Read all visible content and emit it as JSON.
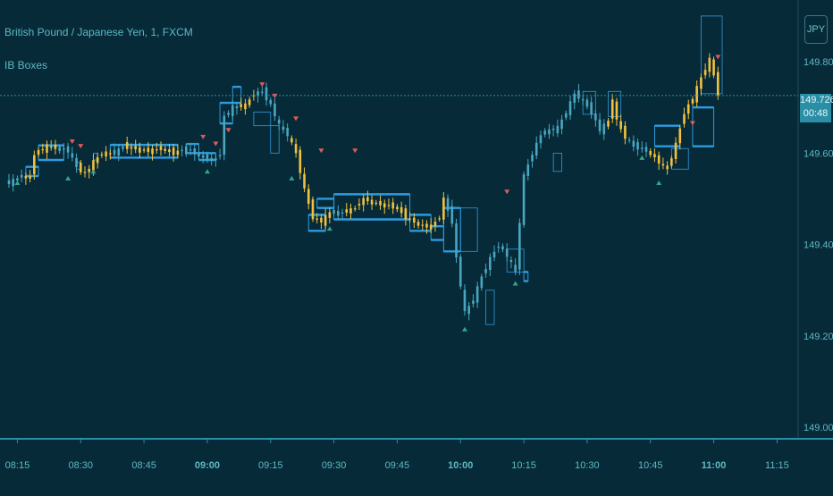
{
  "legend": {
    "symbol": "British Pound / Japanese Yen, 1, FXCM",
    "indicator": "IB Boxes"
  },
  "currency": "JPY",
  "last_price": {
    "value": "149.726",
    "countdown": "00:48",
    "level": 149.726
  },
  "colors": {
    "background": "#062a38",
    "axis_text": "#5fb8c4",
    "box": "#2e9be0",
    "candle_inside": "#f2c13f",
    "candle_normal": "#4aa6c0",
    "price_line": "#2a8fa5",
    "marker_up": "#35a38c",
    "marker_down": "#e05a5a"
  },
  "chart_data": {
    "type": "candlestick",
    "y_ticks": [
      "149.800",
      "149.600",
      "149.400",
      "149.200",
      "149.000"
    ],
    "y_tick_values": [
      149.8,
      149.6,
      149.4,
      149.2,
      149.0
    ],
    "ylim": [
      148.975,
      149.935
    ],
    "x_ticks": [
      {
        "label": "08:15",
        "t": 15,
        "bold": false
      },
      {
        "label": "08:30",
        "t": 30,
        "bold": false
      },
      {
        "label": "08:45",
        "t": 45,
        "bold": false
      },
      {
        "label": "09:00",
        "t": 60,
        "bold": true
      },
      {
        "label": "09:15",
        "t": 75,
        "bold": false
      },
      {
        "label": "09:30",
        "t": 90,
        "bold": false
      },
      {
        "label": "09:45",
        "t": 105,
        "bold": false
      },
      {
        "label": "10:00",
        "t": 120,
        "bold": true
      },
      {
        "label": "10:15",
        "t": 135,
        "bold": false
      },
      {
        "label": "10:30",
        "t": 150,
        "bold": false
      },
      {
        "label": "10:45",
        "t": 165,
        "bold": false
      },
      {
        "label": "11:00",
        "t": 180,
        "bold": true
      },
      {
        "label": "11:15",
        "t": 195,
        "bold": false
      }
    ],
    "xlim": [
      13,
      200
    ],
    "path": [
      [
        13,
        149.535
      ],
      [
        16,
        149.55
      ],
      [
        18,
        149.545
      ],
      [
        19,
        149.6
      ],
      [
        22,
        149.615
      ],
      [
        25,
        149.61
      ],
      [
        27,
        149.605
      ],
      [
        29,
        149.57
      ],
      [
        31,
        149.555
      ],
      [
        33,
        149.58
      ],
      [
        35,
        149.6
      ],
      [
        38,
        149.6
      ],
      [
        40,
        149.615
      ],
      [
        43,
        149.61
      ],
      [
        46,
        149.605
      ],
      [
        49,
        149.61
      ],
      [
        52,
        149.6
      ],
      [
        55,
        149.61
      ],
      [
        57,
        149.6
      ],
      [
        59,
        149.59
      ],
      [
        62,
        149.585
      ],
      [
        63,
        149.6
      ],
      [
        64,
        149.68
      ],
      [
        66,
        149.7
      ],
      [
        69,
        149.705
      ],
      [
        71,
        149.73
      ],
      [
        73,
        149.735
      ],
      [
        75,
        149.705
      ],
      [
        77,
        149.66
      ],
      [
        79,
        149.64
      ],
      [
        81,
        149.6
      ],
      [
        83,
        149.52
      ],
      [
        85,
        149.46
      ],
      [
        87,
        149.45
      ],
      [
        89,
        149.47
      ],
      [
        92,
        149.47
      ],
      [
        95,
        149.48
      ],
      [
        97,
        149.5
      ],
      [
        100,
        149.49
      ],
      [
        103,
        149.485
      ],
      [
        105,
        149.48
      ],
      [
        107,
        149.46
      ],
      [
        109,
        149.45
      ],
      [
        111,
        149.44
      ],
      [
        113,
        149.44
      ],
      [
        115,
        149.46
      ],
      [
        116,
        149.5
      ],
      [
        118,
        149.45
      ],
      [
        119,
        149.37
      ],
      [
        121,
        149.25
      ],
      [
        123,
        149.28
      ],
      [
        125,
        149.33
      ],
      [
        127,
        149.37
      ],
      [
        129,
        149.4
      ],
      [
        131,
        149.375
      ],
      [
        133,
        149.34
      ],
      [
        134,
        149.45
      ],
      [
        135,
        149.55
      ],
      [
        137,
        149.6
      ],
      [
        139,
        149.64
      ],
      [
        141,
        149.65
      ],
      [
        143,
        149.655
      ],
      [
        145,
        149.69
      ],
      [
        147,
        149.73
      ],
      [
        149,
        149.715
      ],
      [
        151,
        149.69
      ],
      [
        153,
        149.65
      ],
      [
        155,
        149.67
      ],
      [
        156,
        149.72
      ],
      [
        157,
        149.67
      ],
      [
        159,
        149.635
      ],
      [
        161,
        149.615
      ],
      [
        163,
        149.61
      ],
      [
        165,
        149.6
      ],
      [
        167,
        149.58
      ],
      [
        169,
        149.565
      ],
      [
        171,
        149.62
      ],
      [
        173,
        149.69
      ],
      [
        175,
        149.72
      ],
      [
        177,
        149.765
      ],
      [
        179,
        149.805
      ],
      [
        180,
        149.77
      ],
      [
        181,
        149.73
      ]
    ],
    "inside_bar_ranges": [
      [
        17,
        24
      ],
      [
        30,
        37
      ],
      [
        41,
        53
      ],
      [
        68,
        71
      ],
      [
        80,
        89
      ],
      [
        93,
        109
      ],
      [
        110,
        116
      ],
      [
        155,
        159
      ],
      [
        165,
        175
      ],
      [
        176,
        181
      ]
    ],
    "ib_boxes": [
      {
        "t0": 20,
        "t1": 26,
        "hi": 149.617,
        "lo": 149.585,
        "style": "bold"
      },
      {
        "t0": 17,
        "t1": 20,
        "hi": 149.57,
        "lo": 149.55,
        "style": "bold"
      },
      {
        "t0": 29,
        "t1": 30,
        "hi": 149.58,
        "lo": 149.565,
        "style": "thin"
      },
      {
        "t0": 33,
        "t1": 34,
        "hi": 149.6,
        "lo": 149.585,
        "style": "thin"
      },
      {
        "t0": 37,
        "t1": 53,
        "hi": 149.618,
        "lo": 149.59,
        "style": "bold"
      },
      {
        "t0": 55,
        "t1": 58,
        "hi": 149.62,
        "lo": 149.6,
        "style": "bold"
      },
      {
        "t0": 58,
        "t1": 62,
        "hi": 149.6,
        "lo": 149.585,
        "style": "bold"
      },
      {
        "t0": 63,
        "t1": 66,
        "hi": 149.71,
        "lo": 149.665,
        "style": "bold"
      },
      {
        "t0": 66,
        "t1": 68,
        "hi": 149.745,
        "lo": 149.71,
        "style": "bold"
      },
      {
        "t0": 71,
        "t1": 75,
        "hi": 149.69,
        "lo": 149.66,
        "style": "thin"
      },
      {
        "t0": 75,
        "t1": 77,
        "hi": 149.66,
        "lo": 149.6,
        "style": "thin"
      },
      {
        "t0": 84,
        "t1": 88,
        "hi": 149.465,
        "lo": 149.43,
        "style": "bold"
      },
      {
        "t0": 86,
        "t1": 90,
        "hi": 149.5,
        "lo": 149.48,
        "style": "bold"
      },
      {
        "t0": 90,
        "t1": 108,
        "hi": 149.51,
        "lo": 149.455,
        "style": "bold"
      },
      {
        "t0": 108,
        "t1": 113,
        "hi": 149.465,
        "lo": 149.43,
        "style": "bold"
      },
      {
        "t0": 113,
        "t1": 116,
        "hi": 149.44,
        "lo": 149.41,
        "style": "bold"
      },
      {
        "t0": 116,
        "t1": 120,
        "hi": 149.48,
        "lo": 149.385,
        "style": "bold"
      },
      {
        "t0": 120,
        "t1": 124,
        "hi": 149.48,
        "lo": 149.385,
        "style": "thin"
      },
      {
        "t0": 126,
        "t1": 128,
        "hi": 149.3,
        "lo": 149.225,
        "style": "thin"
      },
      {
        "t0": 131,
        "t1": 135,
        "hi": 149.39,
        "lo": 149.34,
        "style": "thin"
      },
      {
        "t0": 135,
        "t1": 136,
        "hi": 149.34,
        "lo": 149.32,
        "style": "bold"
      },
      {
        "t0": 142,
        "t1": 144,
        "hi": 149.6,
        "lo": 149.56,
        "style": "thin"
      },
      {
        "t0": 149,
        "t1": 152,
        "hi": 149.735,
        "lo": 149.685,
        "style": "thin"
      },
      {
        "t0": 155,
        "t1": 158,
        "hi": 149.735,
        "lo": 149.68,
        "style": "thin"
      },
      {
        "t0": 166,
        "t1": 172,
        "hi": 149.66,
        "lo": 149.615,
        "style": "bold"
      },
      {
        "t0": 170,
        "t1": 174,
        "hi": 149.61,
        "lo": 149.565,
        "style": "thin"
      },
      {
        "t0": 175,
        "t1": 180,
        "hi": 149.7,
        "lo": 149.615,
        "style": "bold"
      },
      {
        "t0": 177,
        "t1": 182,
        "hi": 149.9,
        "lo": 149.73,
        "style": "thin"
      }
    ],
    "up_markers": [
      [
        15,
        149.54
      ],
      [
        27,
        149.55
      ],
      [
        33,
        149.565
      ],
      [
        60,
        149.565
      ],
      [
        80,
        149.55
      ],
      [
        89,
        149.44
      ],
      [
        121,
        149.22
      ],
      [
        133,
        149.32
      ],
      [
        163,
        149.595
      ],
      [
        167,
        149.54
      ]
    ],
    "down_markers": [
      [
        28,
        149.63
      ],
      [
        30,
        149.62
      ],
      [
        59,
        149.64
      ],
      [
        62,
        149.625
      ],
      [
        65,
        149.655
      ],
      [
        73,
        149.755
      ],
      [
        76,
        149.73
      ],
      [
        81,
        149.68
      ],
      [
        87,
        149.61
      ],
      [
        95,
        149.61
      ],
      [
        131,
        149.52
      ],
      [
        175,
        149.67
      ],
      [
        181,
        149.815
      ]
    ]
  }
}
